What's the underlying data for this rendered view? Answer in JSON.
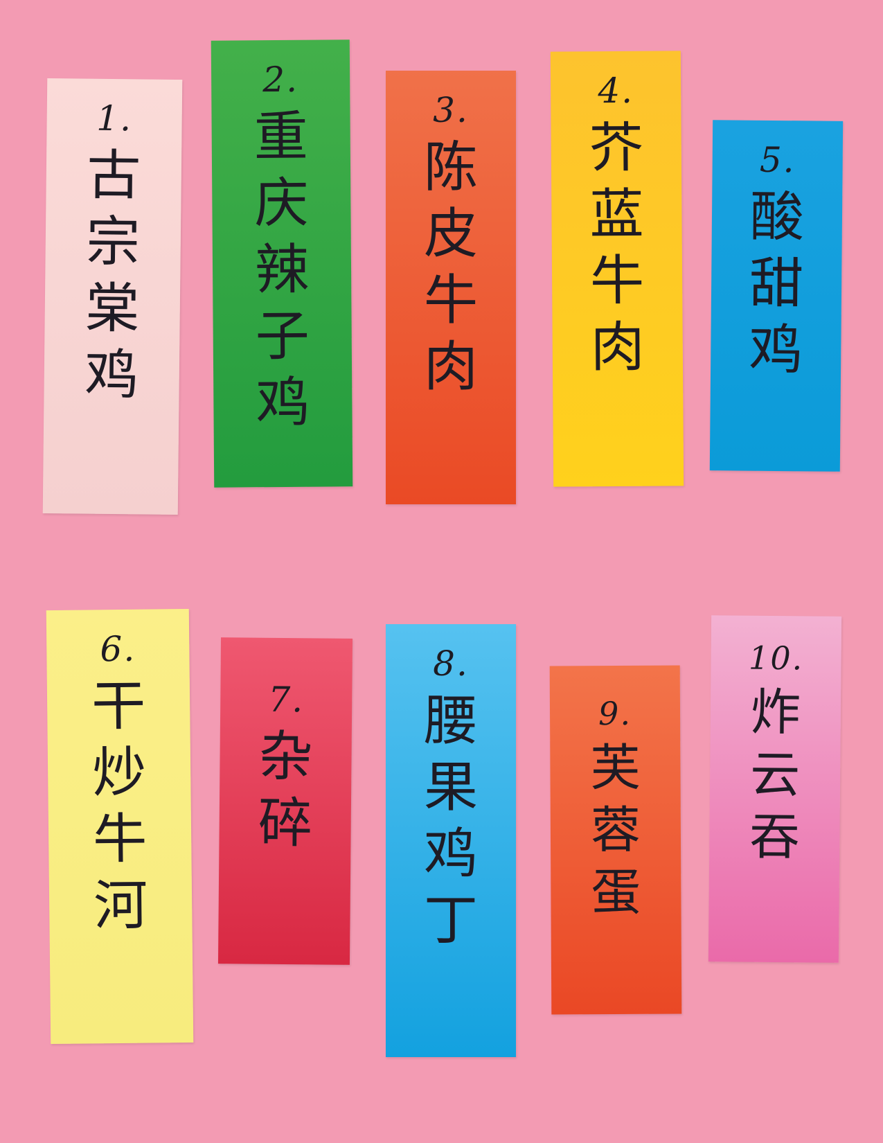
{
  "background_color": "#f39bb3",
  "cards": [
    {
      "number": "1.",
      "chars": [
        "古",
        "宗",
        "棠",
        "鸡"
      ],
      "color_top": "#fbdbd8",
      "color_bottom": "#f5d0cf"
    },
    {
      "number": "2.",
      "chars": [
        "重",
        "庆",
        "辣",
        "子",
        "鸡"
      ],
      "color_top": "#43b04a",
      "color_bottom": "#239c3e"
    },
    {
      "number": "3.",
      "chars": [
        "陈",
        "皮",
        "牛",
        "肉"
      ],
      "color_top": "#f07149",
      "color_bottom": "#ea4a25"
    },
    {
      "number": "4.",
      "chars": [
        "芥",
        "蓝",
        "牛",
        "肉"
      ],
      "color_top": "#fdc32e",
      "color_bottom": "#ffd11c"
    },
    {
      "number": "5.",
      "chars": [
        "酸",
        "甜",
        "鸡"
      ],
      "color_top": "#1aa2e0",
      "color_bottom": "#0b9bd8"
    },
    {
      "number": "6.",
      "chars": [
        "干",
        "炒",
        "牛",
        "河"
      ],
      "color_top": "#fbef89",
      "color_bottom": "#f7ec7e"
    },
    {
      "number": "7.",
      "chars": [
        "杂",
        "碎"
      ],
      "color_top": "#ef5870",
      "color_bottom": "#d82842"
    },
    {
      "number": "8.",
      "chars": [
        "腰",
        "果",
        "鸡",
        "丁"
      ],
      "color_top": "#56c2f0",
      "color_bottom": "#13a1df"
    },
    {
      "number": "9.",
      "chars": [
        "芙",
        "蓉",
        "蛋"
      ],
      "color_top": "#f3744a",
      "color_bottom": "#ea4825"
    },
    {
      "number": "10.",
      "chars": [
        "炸",
        "云",
        "吞"
      ],
      "color_top": "#f3b1d2",
      "color_bottom": "#ea6aa9"
    }
  ]
}
